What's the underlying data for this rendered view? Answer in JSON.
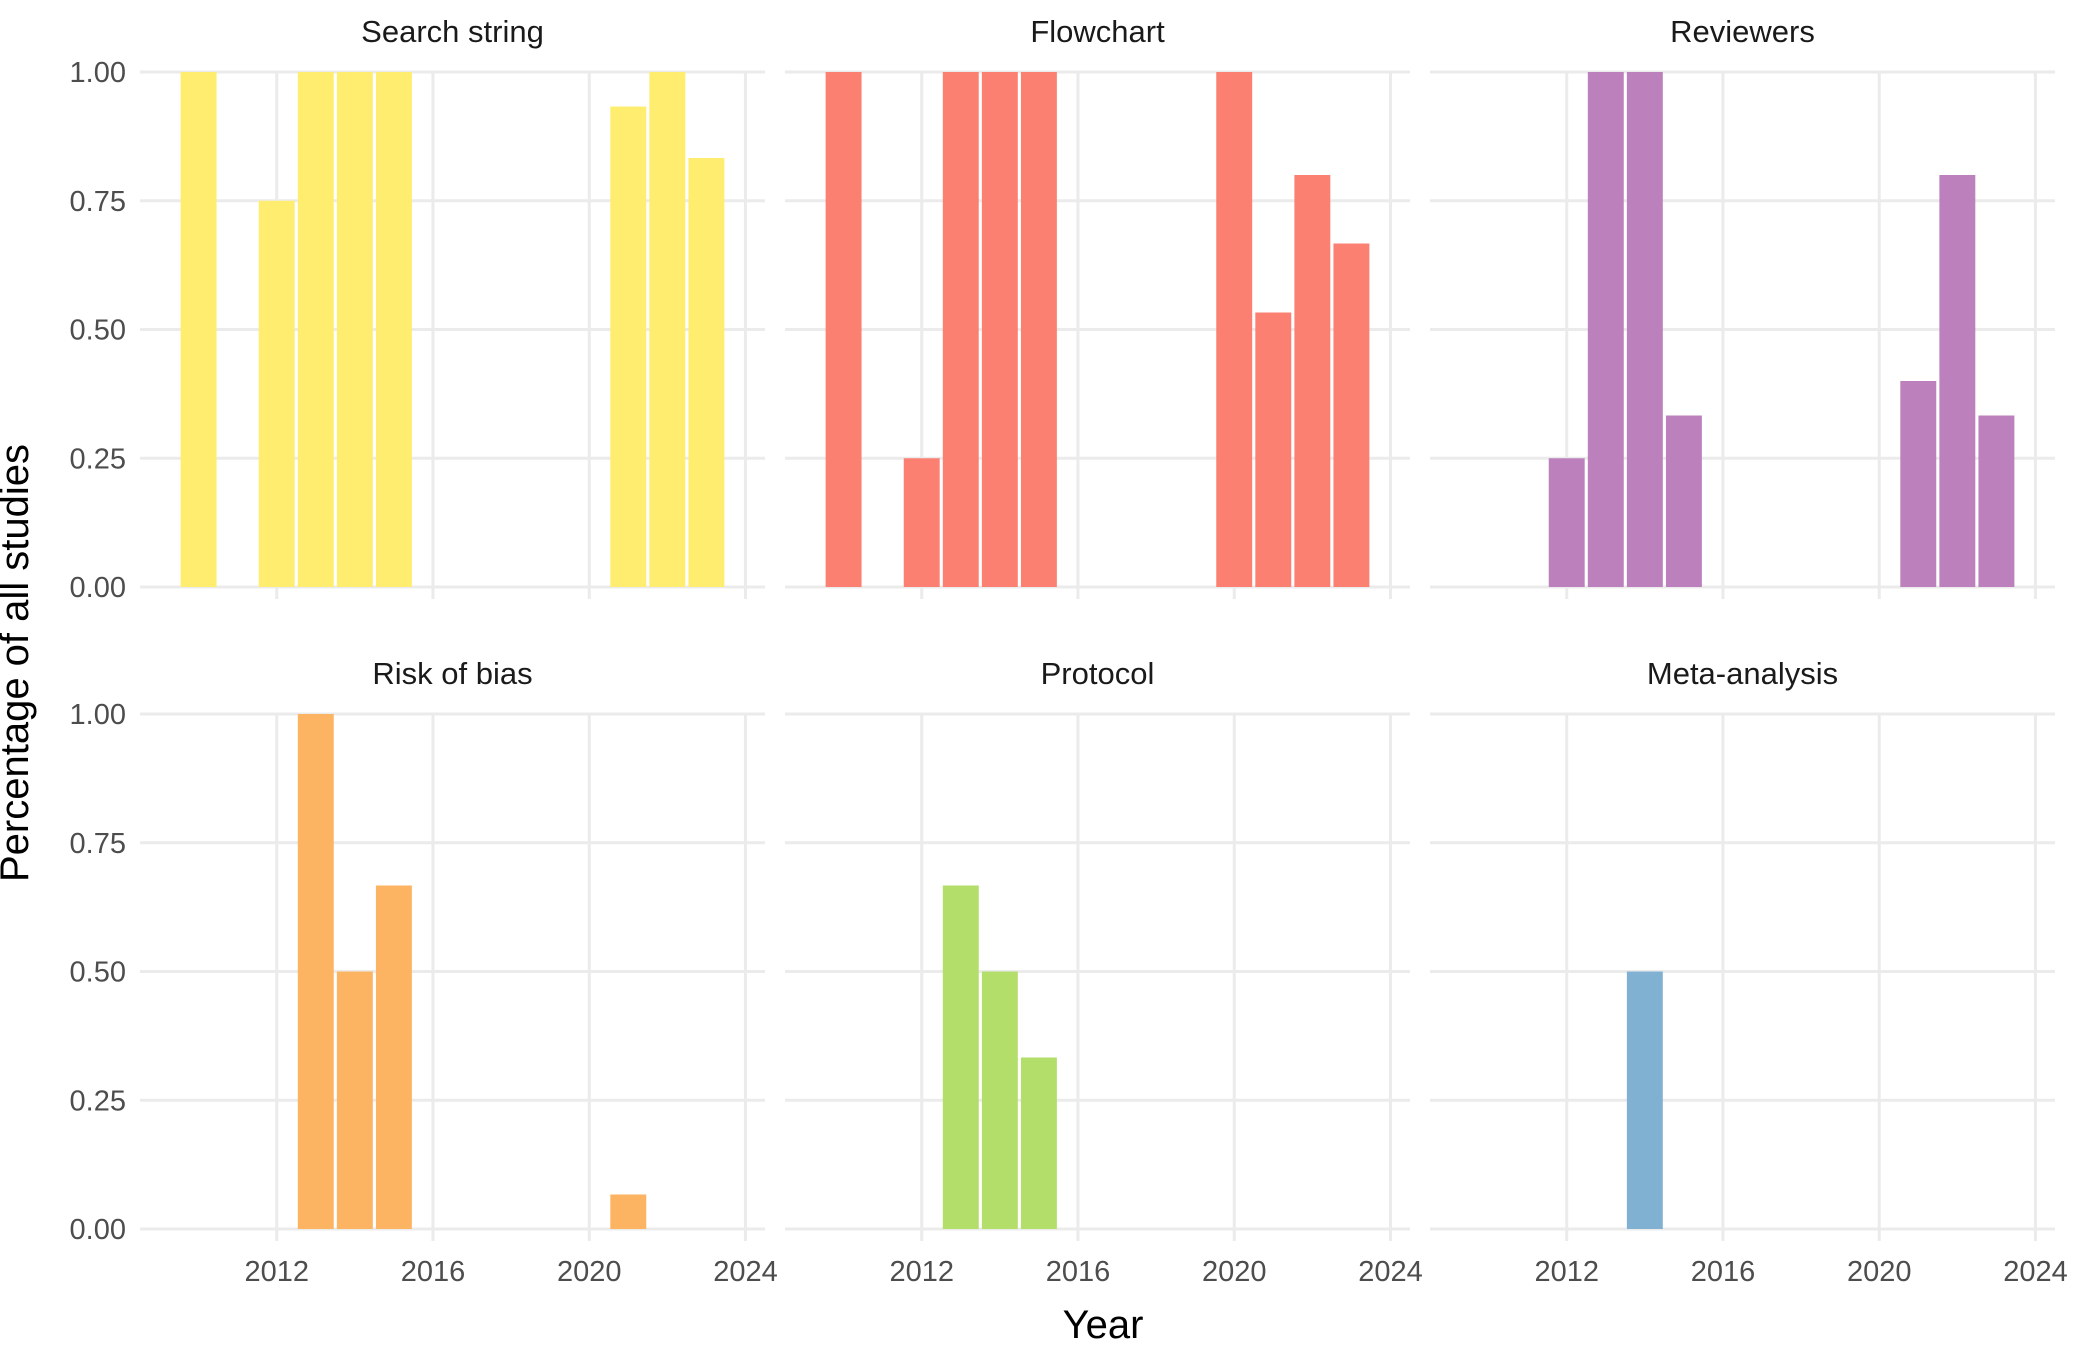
{
  "chart_data": {
    "type": "bar",
    "layout": "facet-grid-2x3",
    "xlabel": "Year",
    "ylabel": "Percentage of all studies",
    "xlim": [
      2008.5,
      2024.5
    ],
    "ylim": [
      0,
      1
    ],
    "x_ticks": [
      "2012",
      "2016",
      "2020",
      "2024"
    ],
    "y_ticks": [
      "0.00",
      "0.25",
      "0.50",
      "0.75",
      "1.00"
    ],
    "grid": true,
    "legend": "none",
    "panels": [
      {
        "title": "Search string",
        "color": "#FFED6F",
        "bars": [
          {
            "x": 2010,
            "y": 1.0
          },
          {
            "x": 2012,
            "y": 0.75
          },
          {
            "x": 2013,
            "y": 1.0
          },
          {
            "x": 2014,
            "y": 1.0
          },
          {
            "x": 2015,
            "y": 1.0
          },
          {
            "x": 2021,
            "y": 0.933
          },
          {
            "x": 2022,
            "y": 1.0
          },
          {
            "x": 2023,
            "y": 0.833
          }
        ]
      },
      {
        "title": "Flowchart",
        "color": "#FB8072",
        "bars": [
          {
            "x": 2010,
            "y": 1.0
          },
          {
            "x": 2012,
            "y": 0.25
          },
          {
            "x": 2013,
            "y": 1.0
          },
          {
            "x": 2014,
            "y": 1.0
          },
          {
            "x": 2015,
            "y": 1.0
          },
          {
            "x": 2020,
            "y": 1.0
          },
          {
            "x": 2021,
            "y": 0.533
          },
          {
            "x": 2022,
            "y": 0.8
          },
          {
            "x": 2023,
            "y": 0.667
          }
        ]
      },
      {
        "title": "Reviewers",
        "color": "#BC80BD",
        "bars": [
          {
            "x": 2012,
            "y": 0.25
          },
          {
            "x": 2013,
            "y": 1.0
          },
          {
            "x": 2014,
            "y": 1.0
          },
          {
            "x": 2015,
            "y": 0.333
          },
          {
            "x": 2021,
            "y": 0.4
          },
          {
            "x": 2022,
            "y": 0.8
          },
          {
            "x": 2023,
            "y": 0.333
          }
        ]
      },
      {
        "title": "Risk of bias",
        "color": "#FDB462",
        "bars": [
          {
            "x": 2013,
            "y": 1.0
          },
          {
            "x": 2014,
            "y": 0.5
          },
          {
            "x": 2015,
            "y": 0.667
          },
          {
            "x": 2021,
            "y": 0.067
          }
        ]
      },
      {
        "title": "Protocol",
        "color": "#B3DE69",
        "bars": [
          {
            "x": 2013,
            "y": 0.667
          },
          {
            "x": 2014,
            "y": 0.5
          },
          {
            "x": 2015,
            "y": 0.333
          }
        ]
      },
      {
        "title": "Meta-analysis",
        "color": "#80B1D3",
        "bars": [
          {
            "x": 2014,
            "y": 0.5
          }
        ]
      }
    ]
  }
}
